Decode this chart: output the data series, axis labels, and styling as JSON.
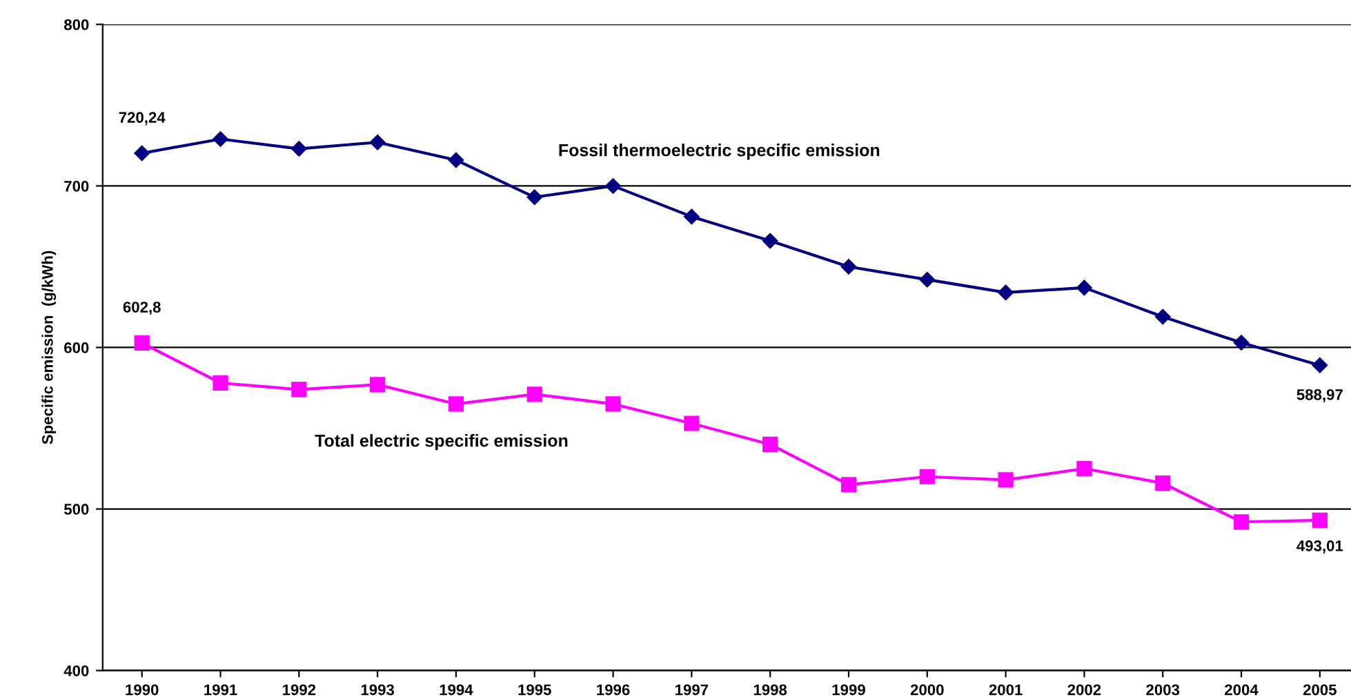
{
  "chart_data": {
    "type": "line",
    "ylabel": "Specific emission  (g/kWh)",
    "categories": [
      "1990",
      "1991",
      "1992",
      "1993",
      "1994",
      "1995",
      "1996",
      "1997",
      "1998",
      "1999",
      "2000",
      "2001",
      "2002",
      "2003",
      "2004",
      "2005"
    ],
    "series": [
      {
        "name": "Fossil thermoelectric specific emission",
        "color": "#000080",
        "marker": "diamond",
        "values": [
          720.24,
          729,
          723,
          727,
          716,
          693,
          700,
          681,
          666,
          650,
          642,
          634,
          637,
          619,
          603,
          588.97
        ],
        "value_labels": [
          "720,24",
          null,
          null,
          null,
          null,
          null,
          null,
          null,
          null,
          null,
          null,
          null,
          null,
          null,
          null,
          "588,97"
        ]
      },
      {
        "name": "Total electric specific emission",
        "color": "#ff00ff",
        "marker": "square",
        "values": [
          602.8,
          578,
          574,
          577,
          565,
          571,
          565,
          553,
          540,
          515,
          520,
          518,
          525,
          516,
          492,
          493.01
        ],
        "value_labels": [
          "602,8",
          null,
          null,
          null,
          null,
          null,
          null,
          null,
          null,
          null,
          null,
          null,
          null,
          null,
          null,
          "493,01"
        ]
      }
    ],
    "ylim": [
      400,
      800
    ],
    "yticks": [
      400,
      500,
      600,
      700,
      800
    ],
    "grid": "y",
    "legend": false,
    "line_style": "solid"
  }
}
